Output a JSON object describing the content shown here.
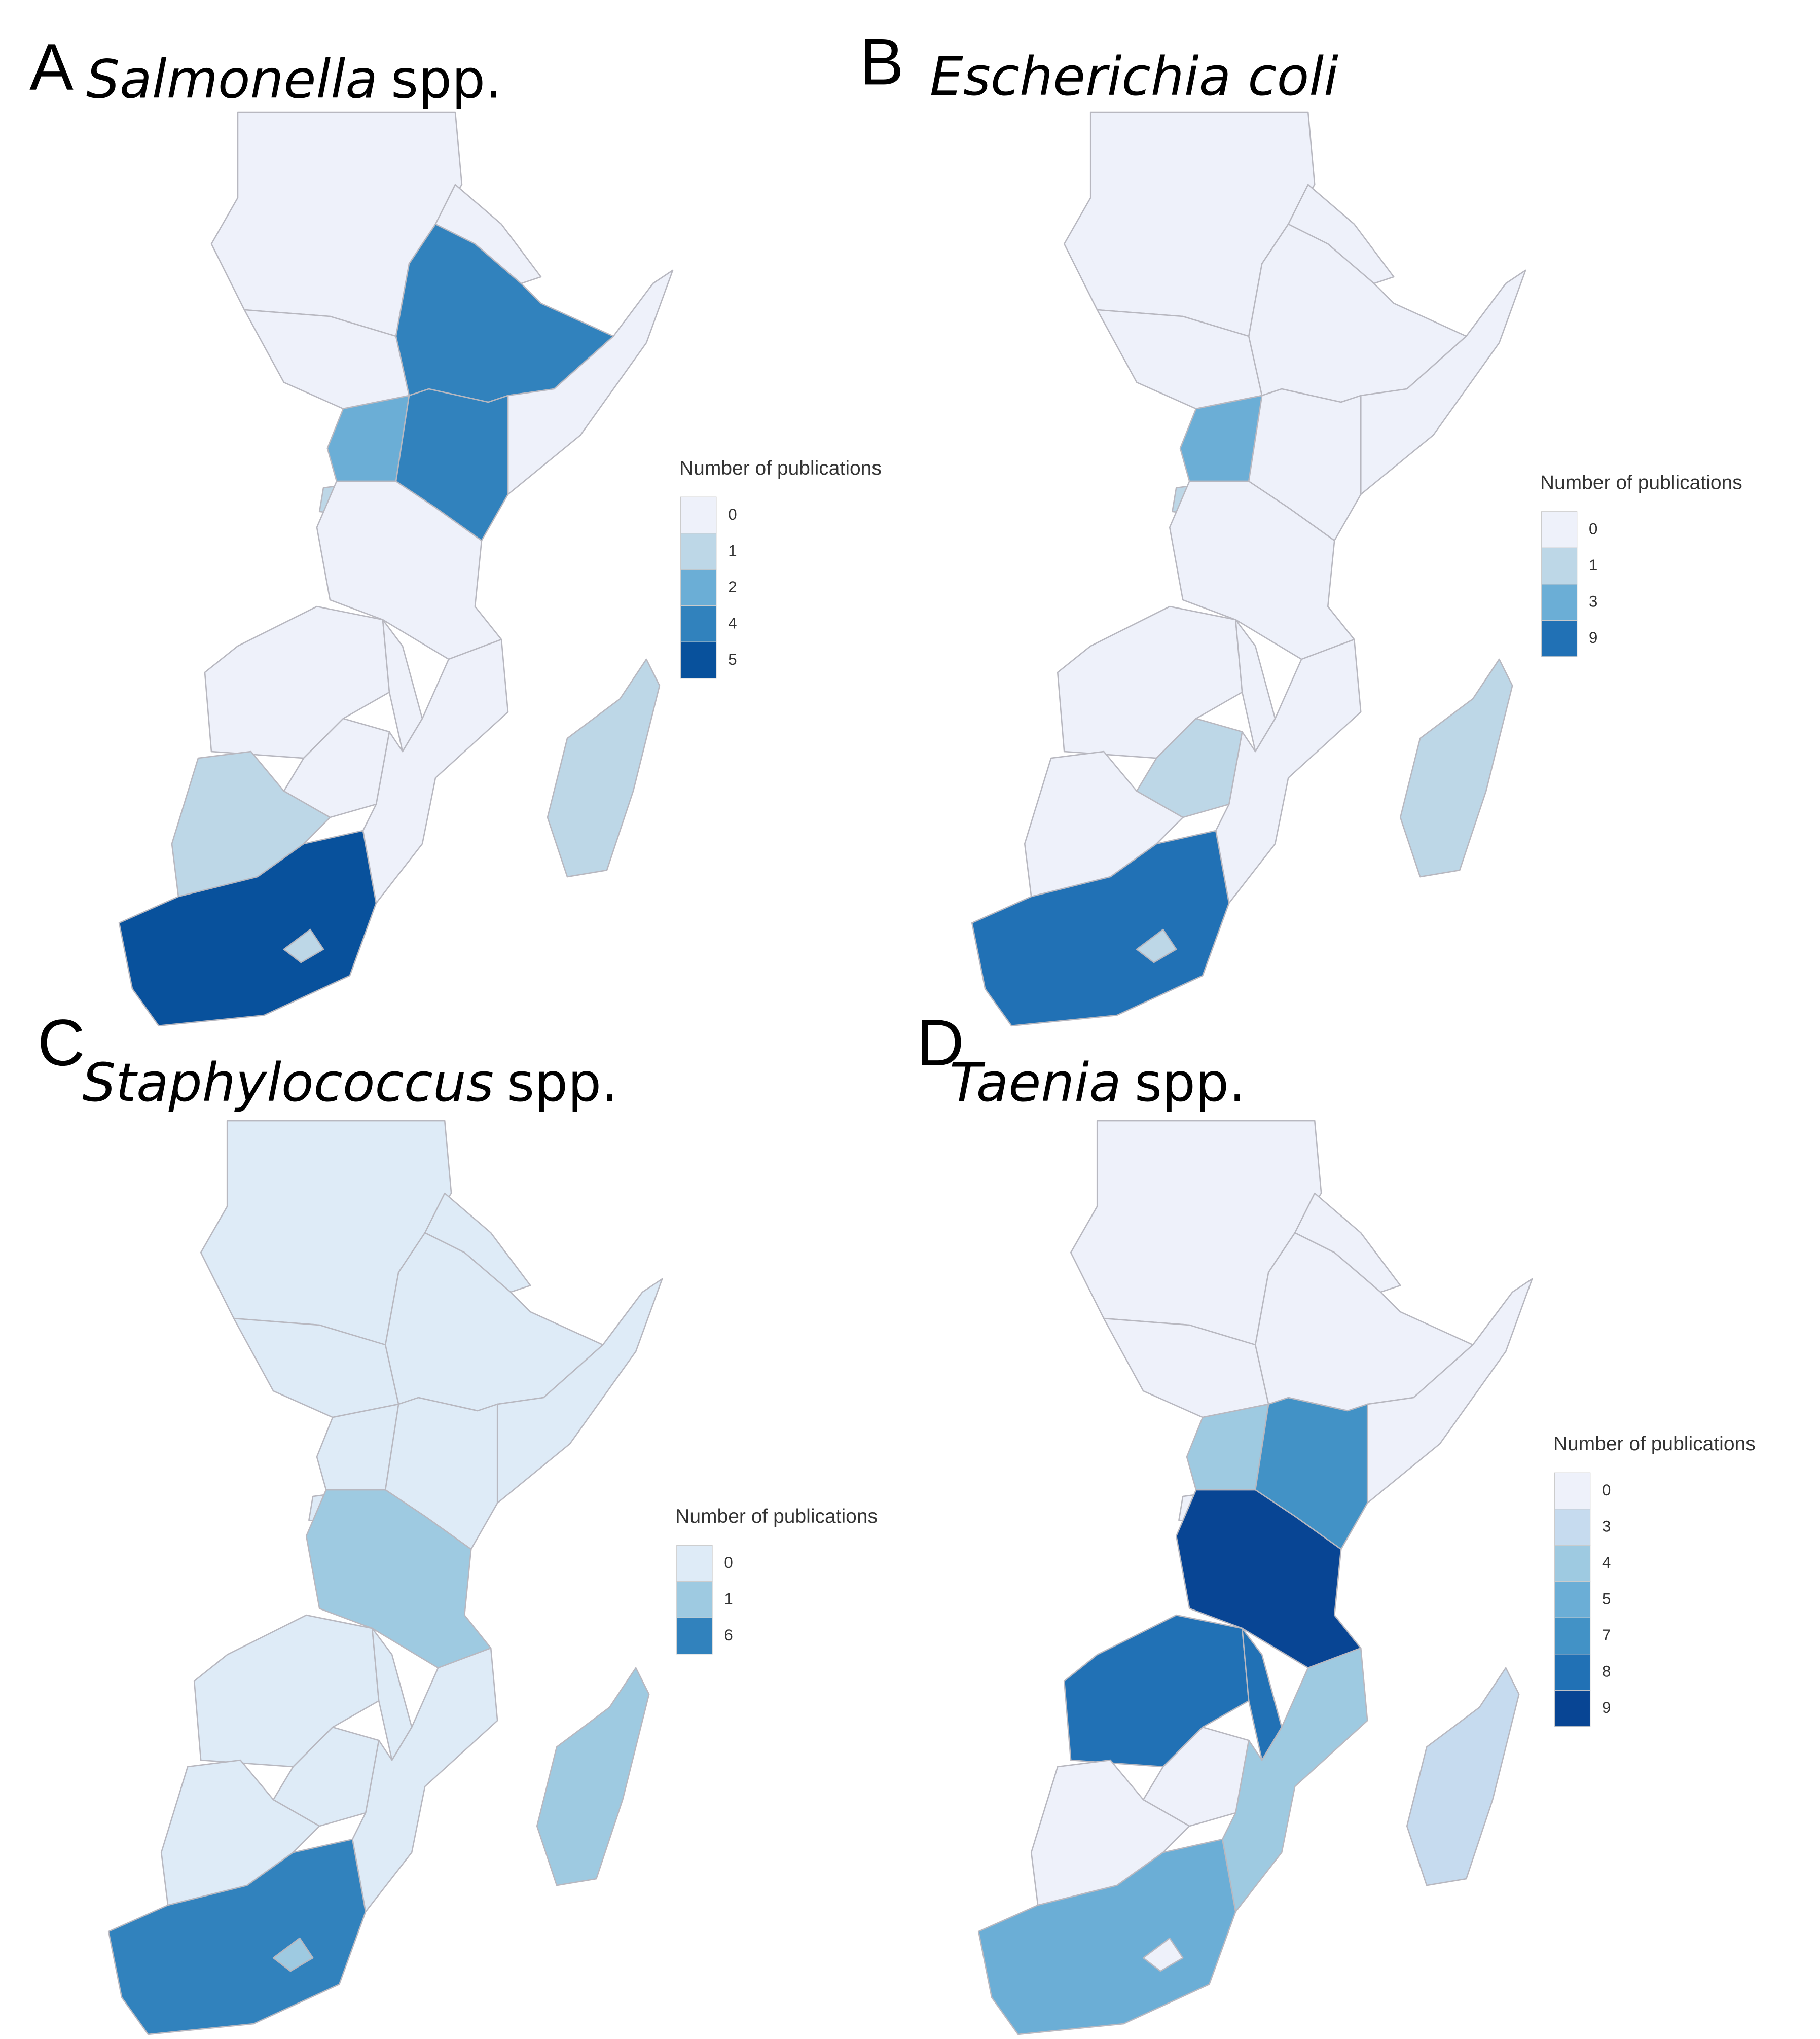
{
  "chart_data": [
    {
      "type": "choropleth",
      "label": "A",
      "organism": "Salmonella",
      "suffix": "spp.",
      "legend": {
        "title": "Number of publications",
        "values": [
          0,
          1,
          2,
          4,
          5
        ],
        "colors": [
          "#eef1fa",
          "#bdd7e7",
          "#6baed6",
          "#3182bd",
          "#08519c"
        ]
      },
      "regions": [
        0,
        0,
        0,
        4,
        0,
        2,
        4,
        1,
        0,
        0,
        0,
        0,
        0,
        1,
        5,
        1,
        1
      ]
    },
    {
      "type": "choropleth",
      "label": "B",
      "organism": "Escherichia coli",
      "legend": {
        "title": "Number of publications",
        "values": [
          0,
          1,
          3,
          9
        ],
        "colors": [
          "#eef1fa",
          "#bdd7e7",
          "#6baed6",
          "#2171b5"
        ]
      },
      "regions": [
        0,
        0,
        0,
        0,
        0,
        3,
        0,
        1,
        0,
        0,
        0,
        0,
        1,
        0,
        9,
        1,
        1
      ]
    },
    {
      "type": "choropleth",
      "label": "C",
      "organism": "Staphylococcus",
      "suffix": "spp.",
      "legend": {
        "title": "Number of publications",
        "values": [
          0,
          1,
          6
        ],
        "colors": [
          "#deebf7",
          "#9ecae1",
          "#3182bd"
        ]
      },
      "regions": [
        0,
        0,
        0,
        0,
        0,
        0,
        0,
        0,
        1,
        0,
        0,
        0,
        0,
        0,
        6,
        1,
        1
      ]
    },
    {
      "type": "choropleth",
      "label": "D",
      "organism": "Taenia",
      "suffix": "spp.",
      "legend": {
        "title": "Number of publications",
        "values": [
          0,
          3,
          4,
          5,
          7,
          8,
          9
        ],
        "colors": [
          "#eef1fa",
          "#c6dbef",
          "#9ecae1",
          "#6baed6",
          "#4292c6",
          "#2171b5",
          "#084594"
        ]
      },
      "regions": [
        0,
        0,
        0,
        0,
        0,
        4,
        7,
        0,
        9,
        8,
        8,
        4,
        0,
        0,
        5,
        0,
        3
      ]
    }
  ]
}
